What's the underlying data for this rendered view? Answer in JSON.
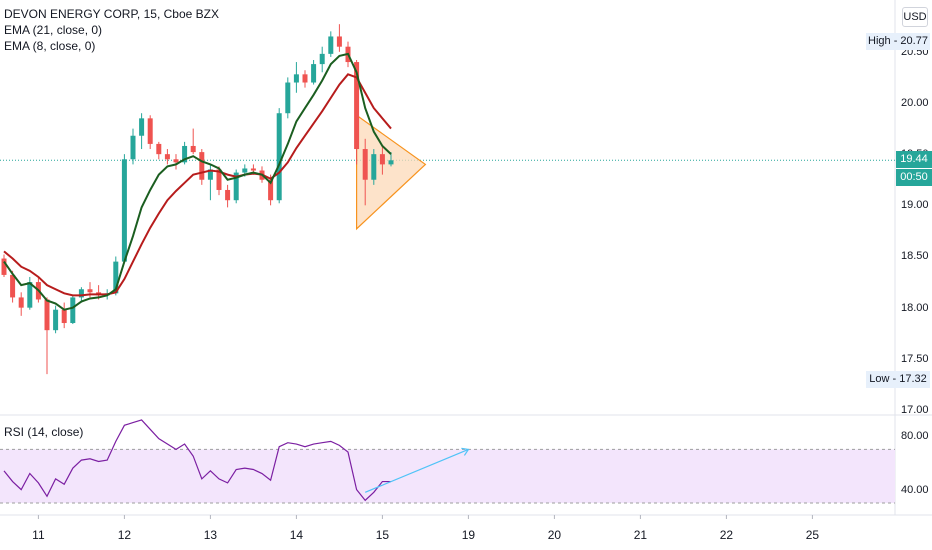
{
  "header": {
    "title": "DEVON ENERGY CORP, 15, Cboe BZX",
    "indicators": [
      "EMA (21, close, 0)",
      "EMA (8, close, 0)"
    ],
    "currency_button": "USD"
  },
  "price_axis": {
    "labels": [
      {
        "text": "20.50",
        "value": 20.5
      },
      {
        "text": "20.00",
        "value": 20.0
      },
      {
        "text": "19.50",
        "value": 19.5
      },
      {
        "text": "19.00",
        "value": 19.0
      },
      {
        "text": "18.50",
        "value": 18.5
      },
      {
        "text": "18.00",
        "value": 18.0
      },
      {
        "text": "17.50",
        "value": 17.5
      },
      {
        "text": "17.00",
        "value": 17.0
      }
    ],
    "high_label": "High - 20.77",
    "low_label": "Low - 17.32",
    "last_price": "19.44",
    "countdown": "00:50"
  },
  "rsi_panel": {
    "label": "RSI (14, close)",
    "axis_labels": [
      {
        "text": "80.00",
        "value": 80
      },
      {
        "text": "40.00",
        "value": 40
      }
    ]
  },
  "time_axis": [
    {
      "text": "11",
      "index": 4
    },
    {
      "text": "12",
      "index": 14
    },
    {
      "text": "13",
      "index": 24
    },
    {
      "text": "14",
      "index": 34
    },
    {
      "text": "15",
      "index": 44
    },
    {
      "text": "19",
      "index": 54
    },
    {
      "text": "20",
      "index": 64
    },
    {
      "text": "21",
      "index": 74
    },
    {
      "text": "22",
      "index": 84
    },
    {
      "text": "25",
      "index": 94
    }
  ],
  "colors": {
    "up": "#26a69a",
    "down": "#ef5350",
    "ema21": "#b71c1c",
    "ema8": "#1b5e20",
    "rsi": "#7b1fa2",
    "rsi_band": "#f3e5fc",
    "triangle_fill": "#fcd9b8",
    "triangle_stroke": "#f7931e",
    "trendline": "#4fc3f7"
  },
  "chart_data": {
    "type": "candlestick",
    "ylim": [
      17.0,
      20.85
    ],
    "candles": [
      {
        "o": 18.48,
        "h": 18.52,
        "l": 18.3,
        "c": 18.32
      },
      {
        "o": 18.32,
        "h": 18.36,
        "l": 18.05,
        "c": 18.1
      },
      {
        "o": 18.1,
        "h": 18.15,
        "l": 17.92,
        "c": 18.0
      },
      {
        "o": 18.0,
        "h": 18.3,
        "l": 17.98,
        "c": 18.25
      },
      {
        "o": 18.25,
        "h": 18.3,
        "l": 18.05,
        "c": 18.08
      },
      {
        "o": 18.08,
        "h": 18.1,
        "l": 17.35,
        "c": 17.78
      },
      {
        "o": 17.78,
        "h": 18.02,
        "l": 17.75,
        "c": 17.98
      },
      {
        "o": 17.98,
        "h": 18.05,
        "l": 17.8,
        "c": 17.85
      },
      {
        "o": 17.85,
        "h": 18.12,
        "l": 17.84,
        "c": 18.1
      },
      {
        "o": 18.1,
        "h": 18.2,
        "l": 18.05,
        "c": 18.18
      },
      {
        "o": 18.18,
        "h": 18.25,
        "l": 18.1,
        "c": 18.15
      },
      {
        "o": 18.15,
        "h": 18.22,
        "l": 18.08,
        "c": 18.12
      },
      {
        "o": 18.12,
        "h": 18.18,
        "l": 18.08,
        "c": 18.14
      },
      {
        "o": 18.14,
        "h": 18.5,
        "l": 18.12,
        "c": 18.45
      },
      {
        "o": 18.45,
        "h": 19.5,
        "l": 18.44,
        "c": 19.45
      },
      {
        "o": 19.45,
        "h": 19.75,
        "l": 19.4,
        "c": 19.68
      },
      {
        "o": 19.68,
        "h": 19.9,
        "l": 19.55,
        "c": 19.85
      },
      {
        "o": 19.85,
        "h": 19.88,
        "l": 19.55,
        "c": 19.6
      },
      {
        "o": 19.6,
        "h": 19.62,
        "l": 19.45,
        "c": 19.5
      },
      {
        "o": 19.5,
        "h": 19.55,
        "l": 19.4,
        "c": 19.45
      },
      {
        "o": 19.45,
        "h": 19.5,
        "l": 19.35,
        "c": 19.42
      },
      {
        "o": 19.42,
        "h": 19.62,
        "l": 19.4,
        "c": 19.58
      },
      {
        "o": 19.58,
        "h": 19.75,
        "l": 19.5,
        "c": 19.52
      },
      {
        "o": 19.52,
        "h": 19.55,
        "l": 19.2,
        "c": 19.25
      },
      {
        "o": 19.25,
        "h": 19.4,
        "l": 19.05,
        "c": 19.35
      },
      {
        "o": 19.35,
        "h": 19.38,
        "l": 19.1,
        "c": 19.15
      },
      {
        "o": 19.15,
        "h": 19.2,
        "l": 18.98,
        "c": 19.05
      },
      {
        "o": 19.05,
        "h": 19.35,
        "l": 19.02,
        "c": 19.32
      },
      {
        "o": 19.32,
        "h": 19.4,
        "l": 19.28,
        "c": 19.36
      },
      {
        "o": 19.36,
        "h": 19.4,
        "l": 19.3,
        "c": 19.34
      },
      {
        "o": 19.34,
        "h": 19.38,
        "l": 19.22,
        "c": 19.25
      },
      {
        "o": 19.25,
        "h": 19.3,
        "l": 19.0,
        "c": 19.05
      },
      {
        "o": 19.05,
        "h": 19.95,
        "l": 19.02,
        "c": 19.9
      },
      {
        "o": 19.9,
        "h": 20.25,
        "l": 19.85,
        "c": 20.2
      },
      {
        "o": 20.2,
        "h": 20.4,
        "l": 20.1,
        "c": 20.28
      },
      {
        "o": 20.28,
        "h": 20.32,
        "l": 20.15,
        "c": 20.2
      },
      {
        "o": 20.2,
        "h": 20.42,
        "l": 20.18,
        "c": 20.38
      },
      {
        "o": 20.38,
        "h": 20.55,
        "l": 20.3,
        "c": 20.48
      },
      {
        "o": 20.48,
        "h": 20.7,
        "l": 20.45,
        "c": 20.65
      },
      {
        "o": 20.65,
        "h": 20.77,
        "l": 20.5,
        "c": 20.55
      },
      {
        "o": 20.55,
        "h": 20.6,
        "l": 20.35,
        "c": 20.4
      },
      {
        "o": 20.4,
        "h": 20.42,
        "l": 19.4,
        "c": 19.55
      },
      {
        "o": 19.55,
        "h": 19.65,
        "l": 19.0,
        "c": 19.25
      },
      {
        "o": 19.25,
        "h": 19.55,
        "l": 19.2,
        "c": 19.5
      },
      {
        "o": 19.5,
        "h": 19.58,
        "l": 19.3,
        "c": 19.4
      },
      {
        "o": 19.4,
        "h": 19.52,
        "l": 19.38,
        "c": 19.44
      }
    ],
    "ema8": [
      18.45,
      18.33,
      18.22,
      18.24,
      18.17,
      18.07,
      18.04,
      17.98,
      18.0,
      18.06,
      18.09,
      18.1,
      18.12,
      18.18,
      18.45,
      18.7,
      18.98,
      19.15,
      19.3,
      19.38,
      19.4,
      19.45,
      19.48,
      19.43,
      19.4,
      19.36,
      19.25,
      19.27,
      19.3,
      19.32,
      19.3,
      19.22,
      19.4,
      19.6,
      19.82,
      19.95,
      20.08,
      20.22,
      20.38,
      20.46,
      20.48,
      20.3,
      19.95,
      19.72,
      19.58,
      19.5
    ],
    "ema21": [
      18.55,
      18.48,
      18.4,
      18.36,
      18.3,
      18.22,
      18.18,
      18.14,
      18.12,
      18.12,
      18.13,
      18.13,
      18.13,
      18.15,
      18.28,
      18.45,
      18.62,
      18.78,
      18.92,
      19.05,
      19.14,
      19.22,
      19.3,
      19.32,
      19.34,
      19.33,
      19.3,
      19.28,
      19.3,
      19.31,
      19.3,
      19.26,
      19.32,
      19.42,
      19.56,
      19.68,
      19.8,
      19.92,
      20.05,
      20.18,
      20.28,
      20.25,
      20.1,
      19.95,
      19.85,
      19.75
    ],
    "rsi": {
      "values": [
        54,
        46,
        40,
        52,
        45,
        35,
        48,
        44,
        56,
        62,
        63,
        61,
        62,
        76,
        88,
        90,
        92,
        85,
        78,
        74,
        70,
        74,
        65,
        48,
        54,
        48,
        45,
        55,
        56,
        55,
        52,
        47,
        72,
        75,
        74,
        72,
        74,
        75,
        76,
        73,
        68,
        40,
        32,
        38,
        46,
        46
      ],
      "ylim": [
        25,
        95
      ],
      "band": [
        30,
        70
      ]
    },
    "triangle": [
      {
        "index": 41,
        "price": 19.88
      },
      {
        "index": 41,
        "price": 18.77
      },
      {
        "index": 49,
        "price": 19.4
      }
    ],
    "rsi_trendline": [
      {
        "index": 42,
        "value": 38
      },
      {
        "index": 54,
        "value": 70
      }
    ]
  }
}
